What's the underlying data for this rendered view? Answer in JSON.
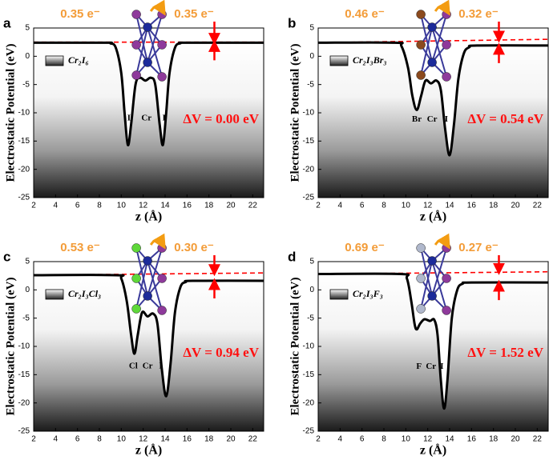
{
  "chart_data": [
    {
      "type": "line",
      "panel_label": "a",
      "x_label": "z (Å)",
      "y_label": "Electrostatic Potential (eV)",
      "xlim": [
        2,
        23
      ],
      "ylim": [
        -25,
        5
      ],
      "xticks": [
        2,
        4,
        6,
        8,
        10,
        12,
        14,
        16,
        18,
        20,
        22
      ],
      "yticks": [
        -25,
        -20,
        -15,
        -10,
        -5,
        0,
        5
      ],
      "legend": "upper left",
      "series": [
        {
          "name": "Cr₂I₆",
          "color": "#000000",
          "x": [
            2,
            8.5,
            9.0,
            9.5,
            10.0,
            10.3,
            10.6,
            10.9,
            11.3,
            11.7,
            12.2,
            12.7,
            13.1,
            13.5,
            13.8,
            14.1,
            14.4,
            14.9,
            15.4,
            16,
            23
          ],
          "values": [
            2.4,
            2.4,
            2.3,
            1.5,
            -3,
            -10,
            -15.7,
            -12,
            -5,
            -3.8,
            -4.3,
            -3.8,
            -5,
            -12,
            -15.7,
            -10,
            -3,
            1.5,
            2.3,
            2.4,
            2.4
          ]
        }
      ],
      "reference_line": {
        "color": "#ff0000",
        "x": [
          2,
          23
        ],
        "values": [
          2.5,
          2.5
        ]
      },
      "charges": [
        "0.35 e⁻",
        "0.35 e⁻"
      ],
      "delta_v": "ΔV = 0.00 eV",
      "atom_labels": [
        "I",
        "Cr",
        "I"
      ]
    },
    {
      "type": "line",
      "panel_label": "b",
      "x_label": "z (Å)",
      "y_label": "Electrostatic Potential (eV)",
      "xlim": [
        2,
        23
      ],
      "ylim": [
        -25,
        5
      ],
      "xticks": [
        2,
        4,
        6,
        8,
        10,
        12,
        14,
        16,
        18,
        20,
        22
      ],
      "yticks": [
        -25,
        -20,
        -15,
        -10,
        -5,
        0,
        5
      ],
      "legend": "upper left",
      "series": [
        {
          "name": "Cr₂I₃Br₃",
          "color": "#000000",
          "x": [
            2,
            9,
            9.6,
            10.2,
            10.6,
            11,
            11.4,
            11.8,
            12.3,
            12.8,
            13.2,
            13.6,
            14,
            14.4,
            14.8,
            15.3,
            15.8,
            16.5,
            23
          ],
          "values": [
            2.4,
            2.4,
            1.8,
            -2,
            -7,
            -9.5,
            -7,
            -4.3,
            -4.8,
            -4.3,
            -6,
            -13,
            -17.5,
            -12,
            -4,
            0.5,
            1.6,
            1.9,
            1.9
          ]
        }
      ],
      "reference_line": {
        "color": "#ff0000",
        "x": [
          2,
          23
        ],
        "values": [
          2.4,
          3.0
        ]
      },
      "charges": [
        "0.46 e⁻",
        "0.32 e⁻"
      ],
      "delta_v": "ΔV = 0.54 eV",
      "atom_labels": [
        "Br",
        "Cr",
        "I"
      ]
    },
    {
      "type": "line",
      "panel_label": "c",
      "x_label": "z (Å)",
      "y_label": "Electrostatic Potential (eV)",
      "xlim": [
        2,
        23
      ],
      "ylim": [
        -25,
        5
      ],
      "xticks": [
        2,
        4,
        6,
        8,
        10,
        12,
        14,
        16,
        18,
        20,
        22
      ],
      "yticks": [
        -25,
        -20,
        -15,
        -10,
        -5,
        0,
        5
      ],
      "legend": "upper left",
      "series": [
        {
          "name": "Cr₂I₃Cl₃",
          "color": "#000000",
          "x": [
            2,
            9.5,
            10,
            10.5,
            10.9,
            11.2,
            11.5,
            11.9,
            12.4,
            12.9,
            13.3,
            13.7,
            14.1,
            14.5,
            14.9,
            15.4,
            15.9,
            16.5,
            23
          ],
          "values": [
            2.6,
            2.6,
            2,
            -2,
            -8,
            -11.3,
            -8,
            -4,
            -4.7,
            -4.2,
            -6,
            -14,
            -18.8,
            -13,
            -4,
            0.5,
            1.4,
            1.6,
            1.6
          ]
        }
      ],
      "reference_line": {
        "color": "#ff0000",
        "x": [
          2,
          23
        ],
        "values": [
          2.6,
          3.0
        ]
      },
      "charges": [
        "0.53 e⁻",
        "0.30 e⁻"
      ],
      "delta_v": "ΔV = 0.94 eV",
      "atom_labels": [
        "Cl",
        "Cr",
        "I"
      ]
    },
    {
      "type": "line",
      "panel_label": "d",
      "x_label": "z (Å)",
      "y_label": "Electrostatic Potential (eV)",
      "xlim": [
        2,
        23
      ],
      "ylim": [
        -25,
        5
      ],
      "xticks": [
        2,
        4,
        6,
        8,
        10,
        12,
        14,
        16,
        18,
        20,
        22
      ],
      "yticks": [
        -25,
        -20,
        -15,
        -10,
        -5,
        0,
        5
      ],
      "legend": "upper left",
      "series": [
        {
          "name": "Cr₂I₃F₃",
          "color": "#000000",
          "x": [
            2,
            9.5,
            10.1,
            10.5,
            10.8,
            11,
            11.3,
            11.7,
            12.2,
            12.6,
            12.9,
            13.2,
            13.5,
            13.8,
            14.2,
            14.7,
            15.2,
            16,
            23
          ],
          "values": [
            2.8,
            2.8,
            2,
            -2,
            -6,
            -7,
            -6,
            -5.2,
            -5.5,
            -5.3,
            -8,
            -16,
            -21,
            -16,
            -5,
            0,
            1.1,
            1.3,
            1.3
          ]
        }
      ],
      "reference_line": {
        "color": "#ff0000",
        "x": [
          2,
          23
        ],
        "values": [
          2.8,
          3.2
        ]
      },
      "charges": [
        "0.69 e⁻",
        "0.27 e⁻"
      ],
      "delta_v": "ΔV = 1.52 eV",
      "atom_labels": [
        "F",
        "Cr",
        "I"
      ]
    }
  ]
}
